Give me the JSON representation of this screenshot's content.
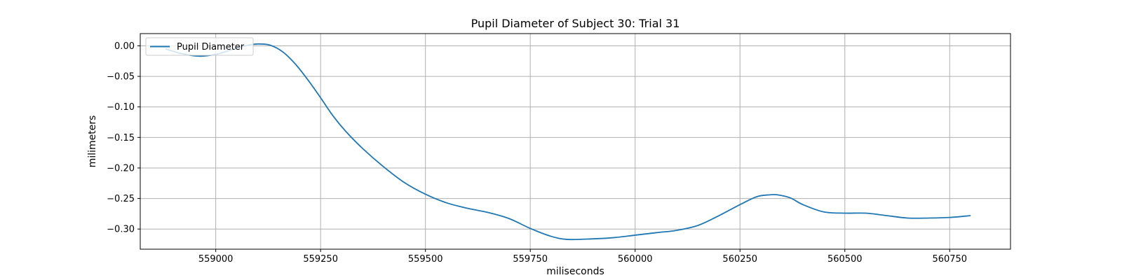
{
  "chart_data": {
    "type": "line",
    "title": "Pupil Diameter of Subject 30: Trial 31",
    "xlabel": "miliseconds",
    "ylabel": "milimeters",
    "xlim": [
      558820,
      560895
    ],
    "ylim": [
      -0.333,
      0.02
    ],
    "xticks": [
      559000,
      559250,
      559500,
      559750,
      560000,
      560250,
      560500,
      560750
    ],
    "xtick_labels": [
      "559000",
      "559250",
      "559500",
      "559750",
      "560000",
      "560250",
      "560500",
      "560750"
    ],
    "yticks": [
      0.0,
      -0.05,
      -0.1,
      -0.15,
      -0.2,
      -0.25,
      -0.3
    ],
    "ytick_labels": [
      "0.00",
      "−0.05",
      "−0.10",
      "−0.15",
      "−0.20",
      "−0.25",
      "−0.30"
    ],
    "grid": true,
    "legend_position": "top-left",
    "series": [
      {
        "name": "Pupil Diameter",
        "color": "#1f77b4",
        "x": [
          558880,
          558920,
          558960,
          559000,
          559040,
          559070,
          559100,
          559130,
          559160,
          559190,
          559220,
          559250,
          559280,
          559310,
          559350,
          559400,
          559450,
          559500,
          559550,
          559600,
          559650,
          559700,
          559750,
          559800,
          559840,
          559900,
          559950,
          560000,
          560050,
          560100,
          560150,
          560200,
          560250,
          560290,
          560320,
          560340,
          560370,
          560400,
          560450,
          560500,
          560550,
          560600,
          560650,
          560700,
          560750,
          560800
        ],
        "y": [
          -0.005,
          -0.013,
          -0.017,
          -0.014,
          -0.006,
          0.0,
          0.003,
          0.001,
          -0.01,
          -0.03,
          -0.056,
          -0.085,
          -0.115,
          -0.14,
          -0.168,
          -0.198,
          -0.224,
          -0.243,
          -0.257,
          -0.266,
          -0.273,
          -0.283,
          -0.299,
          -0.312,
          -0.317,
          -0.316,
          -0.314,
          -0.31,
          -0.306,
          -0.302,
          -0.294,
          -0.278,
          -0.26,
          -0.247,
          -0.244,
          -0.244,
          -0.249,
          -0.26,
          -0.272,
          -0.274,
          -0.274,
          -0.278,
          -0.282,
          -0.282,
          -0.281,
          -0.278
        ]
      }
    ]
  }
}
